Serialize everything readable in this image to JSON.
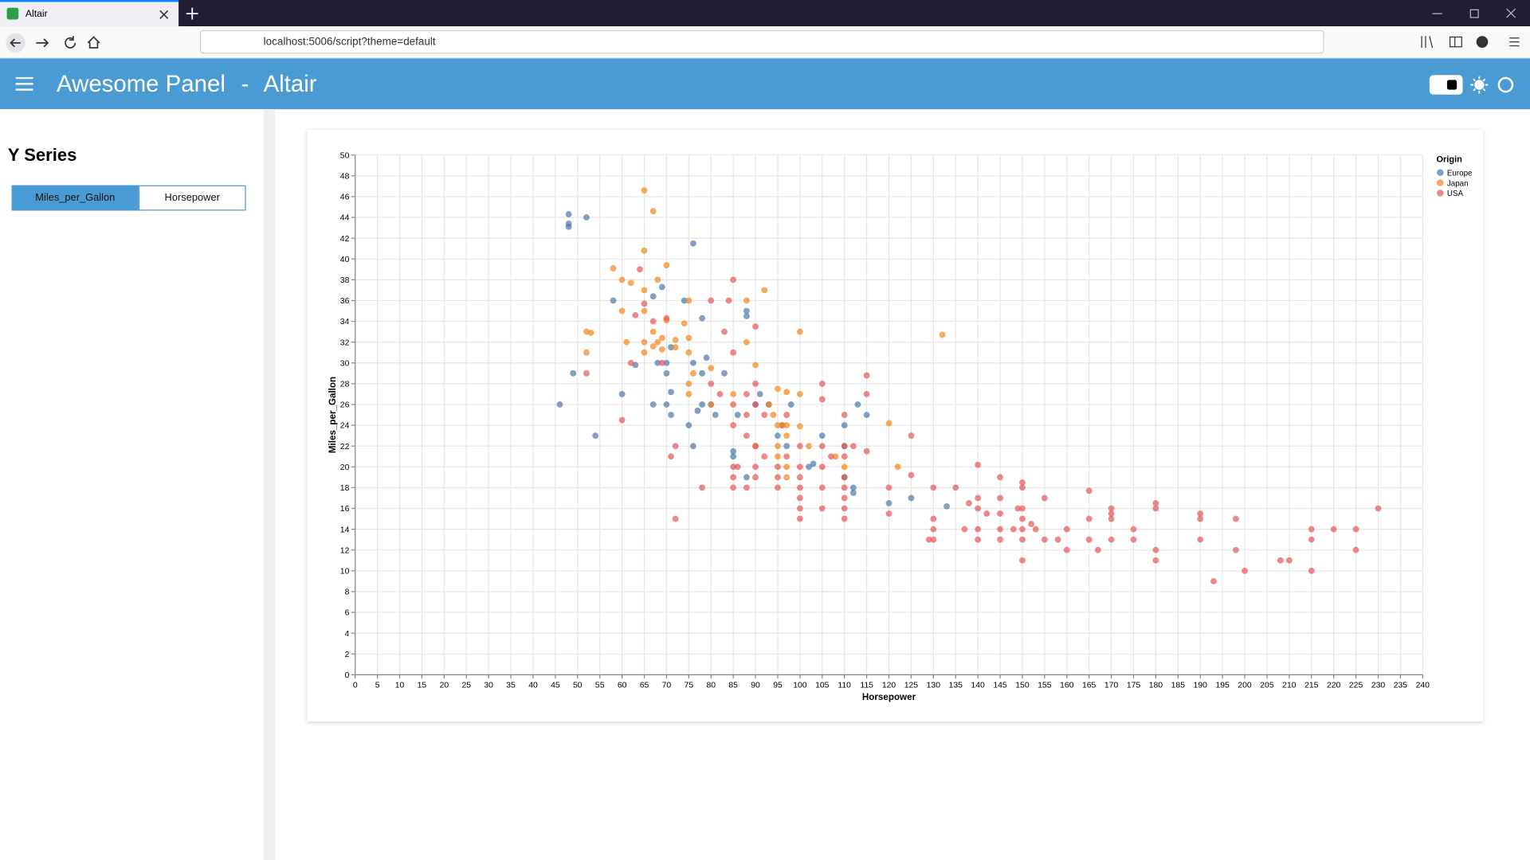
{
  "browser": {
    "tab_title": "Altair",
    "url": "localhost:5006/script?theme=default"
  },
  "header": {
    "title": "Awesome Panel",
    "separator": "-",
    "subtitle": "Altair"
  },
  "sidebar": {
    "title": "Y Series",
    "options": [
      "Miles_per_Gallon",
      "Horsepower"
    ]
  },
  "chart_data": {
    "type": "scatter",
    "x_label": "Horsepower",
    "y_label": "Miles_per_Gallon",
    "legend_title": "Origin",
    "legend_position": "right",
    "grid": true,
    "xlim": [
      0,
      240
    ],
    "ylim": [
      0,
      50
    ],
    "xticks": [
      0,
      5,
      10,
      15,
      20,
      25,
      30,
      35,
      40,
      45,
      50,
      55,
      60,
      65,
      70,
      75,
      80,
      85,
      90,
      95,
      100,
      105,
      110,
      115,
      120,
      125,
      130,
      135,
      140,
      145,
      150,
      155,
      160,
      165,
      170,
      175,
      180,
      185,
      190,
      195,
      200,
      205,
      210,
      215,
      220,
      225,
      230,
      235,
      240
    ],
    "yticks": [
      0,
      2,
      4,
      6,
      8,
      10,
      12,
      14,
      16,
      18,
      20,
      22,
      24,
      26,
      28,
      30,
      32,
      34,
      36,
      38,
      40,
      42,
      44,
      46,
      48,
      50
    ],
    "series": [
      {
        "name": "Europe",
        "color": "#4c78a8",
        "x": [
          46,
          48,
          48,
          48,
          49,
          52,
          54,
          58,
          60,
          63,
          67,
          67,
          68,
          69,
          70,
          70,
          70,
          71,
          71,
          71,
          74,
          75,
          76,
          76,
          76,
          77,
          78,
          78,
          78,
          79,
          80,
          81,
          83,
          85,
          85,
          86,
          88,
          88,
          88,
          90,
          91,
          93,
          95,
          97,
          98,
          102,
          103,
          105,
          110,
          110,
          112,
          112,
          113,
          115,
          120,
          125,
          133,
          110,
          96
        ],
        "values": [
          26,
          43.4,
          43.1,
          44.3,
          29,
          44,
          23,
          36,
          27,
          29.8,
          26,
          36.4,
          30,
          37.3,
          29,
          30,
          26,
          27.2,
          25,
          31.5,
          36,
          24,
          41.5,
          22,
          30,
          25.4,
          34.3,
          26,
          29,
          30.5,
          26,
          25,
          29,
          21,
          21.5,
          25,
          19,
          35,
          34.5,
          26,
          27,
          26,
          23,
          22,
          26,
          20,
          20.3,
          23,
          22,
          24,
          17.5,
          18,
          26,
          25,
          16.5,
          17,
          16.2,
          19,
          24
        ]
      },
      {
        "name": "Japan",
        "color": "#f58518",
        "x": [
          52,
          52,
          53,
          58,
          60,
          60,
          61,
          62,
          65,
          65,
          65,
          65,
          65,
          65,
          67,
          67,
          67,
          68,
          68,
          69,
          69,
          70,
          70,
          72,
          72,
          74,
          75,
          75,
          75,
          75,
          75,
          76,
          80,
          80,
          85,
          88,
          88,
          90,
          92,
          93,
          94,
          95,
          95,
          95,
          96,
          97,
          97,
          97,
          97,
          97,
          100,
          100,
          102,
          108,
          110,
          120,
          122,
          132,
          95,
          90,
          100
        ],
        "values": [
          31,
          33,
          32.9,
          39.1,
          38,
          35,
          32,
          37.7,
          46.6,
          37,
          35,
          31,
          32,
          40.8,
          44.6,
          33,
          31.6,
          38,
          32,
          31.3,
          32.4,
          39.4,
          34.1,
          31.5,
          32.2,
          33.8,
          36,
          31,
          28,
          27,
          32.4,
          29,
          29.5,
          26,
          27,
          36,
          32,
          29.8,
          37,
          26,
          25,
          24,
          22,
          21,
          24,
          27.2,
          19,
          20,
          23,
          24,
          33,
          23.9,
          22,
          21,
          20,
          24.2,
          20,
          32.7,
          27.5,
          22,
          27
        ]
      },
      {
        "name": "USA",
        "color": "#e45756",
        "x": [
          52,
          60,
          62,
          63,
          64,
          65,
          67,
          69,
          70,
          71,
          72,
          72,
          78,
          80,
          80,
          82,
          83,
          84,
          85,
          85,
          85,
          85,
          85,
          85,
          85,
          86,
          88,
          88,
          88,
          88,
          90,
          90,
          90,
          90,
          90,
          90,
          92,
          92,
          95,
          95,
          95,
          97,
          97,
          100,
          100,
          100,
          100,
          100,
          100,
          100,
          105,
          105,
          105,
          105,
          105,
          105,
          107,
          110,
          110,
          110,
          110,
          110,
          110,
          110,
          110,
          112,
          115,
          115,
          115,
          120,
          120,
          125,
          125,
          129,
          130,
          130,
          130,
          130,
          135,
          137,
          138,
          140,
          140,
          140,
          140,
          140,
          142,
          145,
          145,
          145,
          145,
          145,
          148,
          149,
          150,
          150,
          150,
          150,
          150,
          150,
          150,
          152,
          153,
          155,
          155,
          158,
          160,
          160,
          165,
          165,
          165,
          167,
          170,
          170,
          170,
          170,
          175,
          175,
          180,
          180,
          180,
          180,
          190,
          190,
          190,
          193,
          198,
          198,
          200,
          208,
          210,
          215,
          215,
          215,
          220,
          225,
          225,
          230
        ],
        "values": [
          29,
          24.5,
          30,
          34.6,
          39,
          35.7,
          34,
          30,
          34.3,
          21,
          22,
          15,
          18,
          28,
          36,
          27,
          33,
          36,
          38,
          31,
          26,
          24,
          20,
          19,
          18,
          20,
          27,
          23,
          18,
          25,
          28,
          26,
          22,
          20,
          19,
          33.5,
          25,
          21,
          20,
          19,
          18,
          25,
          21,
          20,
          19,
          18,
          17,
          16,
          15,
          22,
          28,
          26.5,
          22,
          20,
          18,
          16,
          21,
          25,
          22,
          21,
          19,
          18,
          17,
          16,
          15,
          22,
          28.8,
          27,
          21.5,
          18,
          15.5,
          23,
          19.2,
          13,
          18,
          15,
          14,
          13,
          18,
          14,
          16.5,
          20.2,
          17,
          16,
          14,
          13,
          15.5,
          19,
          17,
          15.5,
          14,
          13,
          14,
          16,
          18.5,
          18,
          16,
          15,
          14,
          13,
          11,
          14.5,
          14,
          17,
          13,
          13,
          14,
          12,
          17.7,
          15,
          13,
          12,
          16,
          15.5,
          15,
          13,
          14,
          13,
          16.5,
          16,
          12,
          11,
          15.5,
          15,
          13,
          9,
          15,
          12,
          10,
          11,
          11,
          14,
          13,
          10,
          14,
          14,
          12,
          16
        ]
      }
    ]
  }
}
